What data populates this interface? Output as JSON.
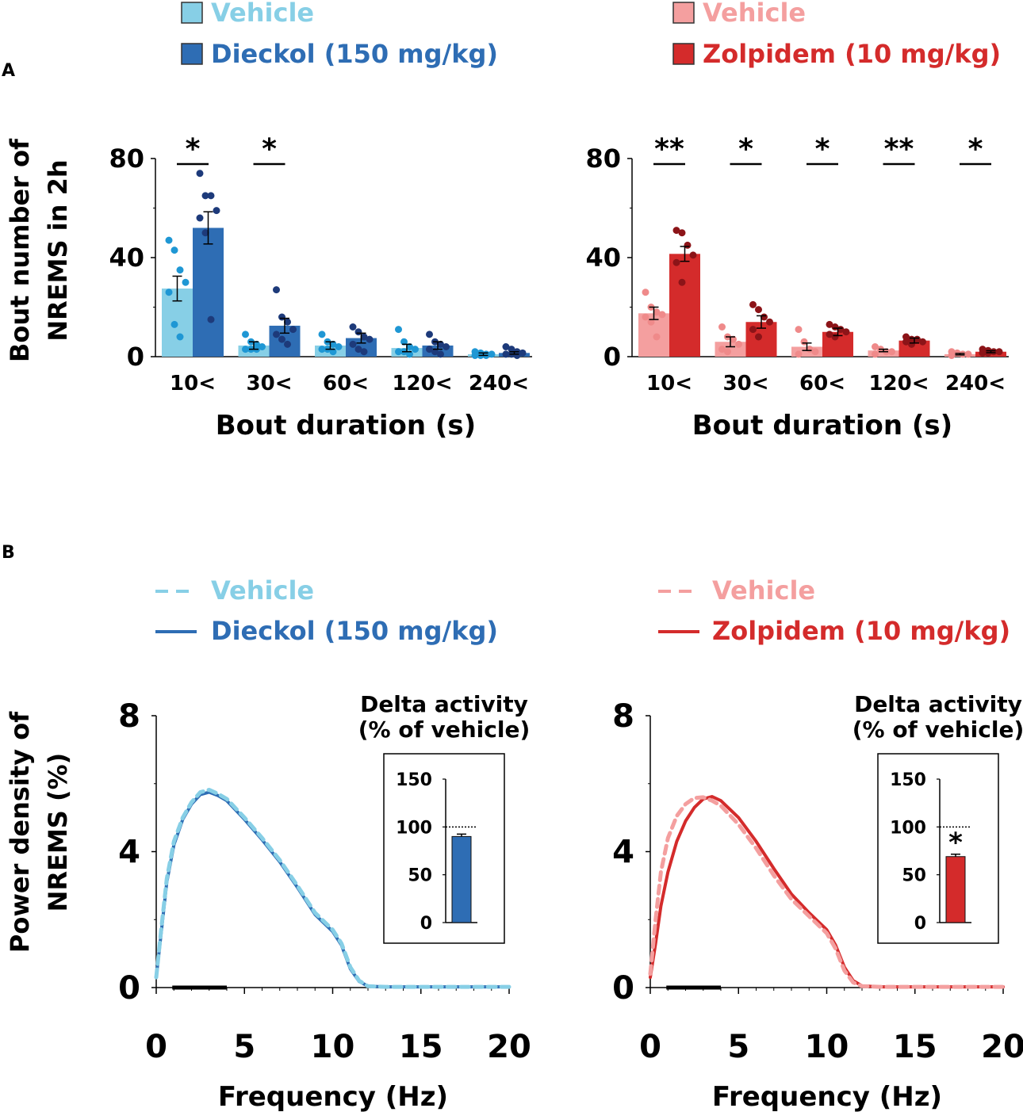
{
  "panels": {
    "a": {
      "label": "A"
    },
    "b": {
      "label": "B"
    }
  },
  "colors": {
    "dieckol_vehicle": "#87cfe6",
    "dieckol": "#2e6db4",
    "dieckol_vehicle_dot": "#1f97d4",
    "dieckol_dot": "#1d3a7a",
    "zolpidem_vehicle": "#f49f9f",
    "zolpidem": "#d42b2b",
    "zolpidem_vehicle_dot": "#ef8a8a",
    "zolpidem_dot": "#8c1418",
    "axis": "#000000"
  },
  "chart_data": [
    {
      "id": "a-left",
      "type": "bar",
      "legend": [
        "Vehicle",
        "Dieckol (150 mg/kg)"
      ],
      "categories": [
        "10<",
        "30<",
        "60<",
        "120<",
        "240<"
      ],
      "series": [
        {
          "name": "Vehicle",
          "values": [
            27.5,
            4.5,
            4.5,
            3.5,
            1.0
          ],
          "sem": [
            5,
            1.5,
            1.5,
            1.5,
            0.5
          ]
        },
        {
          "name": "Dieckol (150 mg/kg)",
          "values": [
            52,
            12.5,
            7.5,
            4.5,
            1.5
          ],
          "sem": [
            6.5,
            3,
            2,
            1.5,
            0.5
          ]
        }
      ],
      "points": [
        [
          [
            47,
            43,
            35,
            30,
            26,
            13,
            8
          ],
          [
            74,
            65,
            65,
            59,
            56,
            50,
            15
          ]
        ],
        [
          [
            9,
            6,
            5,
            4,
            3,
            3,
            3
          ],
          [
            27,
            16,
            14,
            11,
            9,
            7,
            5
          ]
        ],
        [
          [
            9,
            6,
            5,
            4,
            3,
            3,
            2
          ],
          [
            12,
            10,
            8,
            7,
            5,
            3,
            2
          ]
        ],
        [
          [
            11,
            6,
            4,
            3,
            2,
            2,
            1
          ],
          [
            9,
            6,
            5,
            4,
            3,
            2,
            1
          ]
        ],
        [
          [
            2,
            1.5,
            1,
            1,
            0.5,
            0.5,
            0.5
          ],
          [
            4,
            3,
            2,
            1.5,
            1,
            1,
            0.5
          ]
        ]
      ],
      "significance": [
        "*",
        "*",
        "",
        "",
        ""
      ],
      "ylabel": "Bout number of NREMS in 2h",
      "xlabel": "Bout duration (s)",
      "ylim": [
        0,
        80
      ],
      "yticks": [
        "0",
        "40",
        "80"
      ]
    },
    {
      "id": "a-right",
      "type": "bar",
      "legend": [
        "Vehicle",
        "Zolpidem (10 mg/kg)"
      ],
      "categories": [
        "10<",
        "30<",
        "60<",
        "120<",
        "240<"
      ],
      "series": [
        {
          "name": "Vehicle",
          "values": [
            17.5,
            6,
            4,
            2.5,
            1.0
          ],
          "sem": [
            2.5,
            2,
            1.5,
            0.5,
            0.3
          ]
        },
        {
          "name": "Zolpidem (10 mg/kg)",
          "values": [
            41.5,
            14,
            10,
            6.5,
            2.0
          ],
          "sem": [
            3,
            2.5,
            1.5,
            1,
            0.4
          ]
        }
      ],
      "points": [
        [
          [
            26,
            20,
            18,
            17,
            16,
            14,
            8
          ],
          [
            51,
            50,
            45,
            41,
            38,
            30
          ]
        ],
        [
          [
            12,
            8,
            7,
            5,
            3,
            2
          ],
          [
            21,
            19,
            16,
            14,
            11,
            8
          ]
        ],
        [
          [
            11,
            6,
            3,
            2,
            1
          ],
          [
            13,
            12,
            11,
            10,
            9,
            8
          ]
        ],
        [
          [
            4,
            3,
            2,
            2,
            1
          ],
          [
            8,
            7,
            7,
            6,
            6,
            5
          ]
        ],
        [
          [
            2,
            1.5,
            1,
            1,
            0.5
          ],
          [
            3,
            2.5,
            2,
            2,
            1.5,
            1.5
          ]
        ]
      ],
      "significance": [
        "**",
        "*",
        "*",
        "**",
        "*"
      ],
      "ylabel": "",
      "xlabel": "Bout duration (s)",
      "ylim": [
        0,
        80
      ],
      "yticks": [
        "0",
        "40",
        "80"
      ]
    },
    {
      "id": "b-left",
      "type": "line",
      "legend": [
        "Vehicle",
        "Dieckol (150 mg/kg)"
      ],
      "series": [
        {
          "name": "Vehicle",
          "dashed": true,
          "x": [
            0,
            0.3,
            0.6,
            1,
            1.5,
            2,
            2.5,
            3,
            3.5,
            4,
            5,
            6,
            7,
            8,
            9,
            10,
            10.5,
            11,
            11.5,
            12,
            13,
            14,
            15,
            16,
            17,
            18,
            19,
            20
          ],
          "y": [
            0.3,
            1.8,
            3.2,
            4.3,
            5.0,
            5.45,
            5.75,
            5.82,
            5.7,
            5.55,
            5.0,
            4.4,
            3.75,
            3.0,
            2.2,
            1.7,
            1.3,
            0.6,
            0.2,
            0.04,
            0.02,
            0.02,
            0.02,
            0.02,
            0.02,
            0.02,
            0.02,
            0.02
          ]
        },
        {
          "name": "Dieckol (150 mg/kg)",
          "dashed": false,
          "x": [
            0,
            0.3,
            0.6,
            1,
            1.5,
            2,
            2.5,
            3,
            3.5,
            4,
            5,
            6,
            7,
            8,
            9,
            10,
            10.5,
            11,
            11.5,
            12,
            13,
            14,
            15,
            16,
            17,
            18,
            19,
            20
          ],
          "y": [
            0.3,
            1.7,
            3.1,
            4.2,
            4.95,
            5.4,
            5.68,
            5.75,
            5.65,
            5.5,
            4.95,
            4.35,
            3.7,
            2.95,
            2.15,
            1.65,
            1.25,
            0.55,
            0.18,
            0.04,
            0.02,
            0.02,
            0.02,
            0.02,
            0.02,
            0.02,
            0.02,
            0.02
          ]
        }
      ],
      "delta_band": [
        1,
        4
      ],
      "xlabel": "Frequency (Hz)",
      "ylabel": "Power density of NREMS (%)",
      "xlim": [
        0,
        20
      ],
      "ylim": [
        0,
        8
      ],
      "xticks": [
        "0",
        "5",
        "10",
        "15",
        "20"
      ],
      "yticks": [
        "0",
        "4",
        "8"
      ],
      "inset": {
        "type": "bar",
        "title_lines": [
          "Delta activity",
          "(% of vehicle)"
        ],
        "value": 90,
        "sem": 2.5,
        "reference": 100,
        "significance": "",
        "ylim": [
          0,
          150
        ],
        "yticks": [
          "0",
          "50",
          "100",
          "150"
        ]
      }
    },
    {
      "id": "b-right",
      "type": "line",
      "legend": [
        "Vehicle",
        "Zolpidem (10 mg/kg)"
      ],
      "series": [
        {
          "name": "Vehicle",
          "dashed": true,
          "x": [
            0,
            0.3,
            0.6,
            1,
            1.5,
            2,
            2.5,
            3,
            3.5,
            4,
            5,
            6,
            7,
            8,
            9,
            10,
            10.5,
            11,
            11.5,
            12,
            13,
            14,
            15,
            16,
            17,
            18,
            19,
            20
          ],
          "y": [
            0.4,
            2.0,
            3.4,
            4.4,
            5.05,
            5.4,
            5.58,
            5.6,
            5.5,
            5.35,
            4.8,
            4.1,
            3.3,
            2.6,
            2.1,
            1.6,
            1.15,
            0.5,
            0.15,
            0.04,
            0.02,
            0.02,
            0.02,
            0.02,
            0.02,
            0.02,
            0.02,
            0.02
          ]
        },
        {
          "name": "Zolpidem (10 mg/kg)",
          "dashed": false,
          "x": [
            0,
            0.3,
            0.6,
            1,
            1.5,
            2,
            2.5,
            3,
            3.5,
            4,
            5,
            6,
            7,
            8,
            9,
            10,
            10.5,
            11,
            11.5,
            12,
            13,
            14,
            15,
            16,
            17,
            18,
            19,
            20
          ],
          "y": [
            0.3,
            1.3,
            2.4,
            3.4,
            4.3,
            4.9,
            5.3,
            5.55,
            5.62,
            5.5,
            5.0,
            4.3,
            3.5,
            2.75,
            2.2,
            1.7,
            1.25,
            0.6,
            0.2,
            0.05,
            0.02,
            0.02,
            0.02,
            0.02,
            0.02,
            0.02,
            0.02,
            0.02
          ]
        }
      ],
      "delta_band": [
        1,
        4
      ],
      "xlabel": "Frequency (Hz)",
      "ylabel": "",
      "xlim": [
        0,
        20
      ],
      "ylim": [
        0,
        8
      ],
      "xticks": [
        "0",
        "5",
        "10",
        "15",
        "20"
      ],
      "yticks": [
        "0",
        "4",
        "8"
      ],
      "inset": {
        "type": "bar",
        "title_lines": [
          "Delta activity",
          "(% of vehicle)"
        ],
        "value": 69,
        "sem": 2.5,
        "reference": 100,
        "significance": "*",
        "ylim": [
          0,
          150
        ],
        "yticks": [
          "0",
          "50",
          "100",
          "150"
        ]
      }
    }
  ]
}
